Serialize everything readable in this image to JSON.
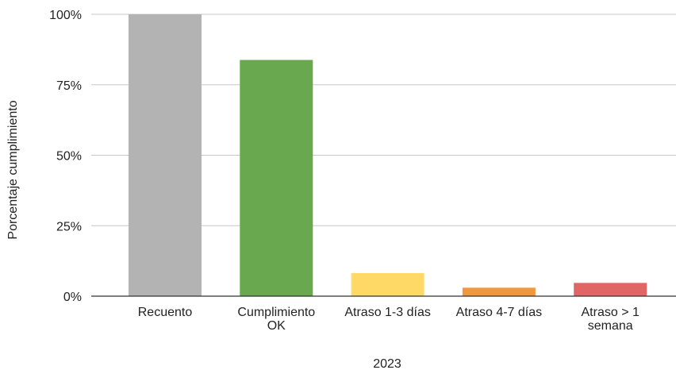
{
  "chart_data": {
    "type": "bar",
    "categories": [
      [
        "Recuento"
      ],
      [
        "Cumplimiento",
        "OK"
      ],
      [
        "Atraso 1-3 días"
      ],
      [
        "Atraso 4-7 días"
      ],
      [
        "Atraso > 1",
        "semana"
      ]
    ],
    "values": [
      100,
      83.8,
      8.2,
      3.0,
      4.7
    ],
    "colors": [
      "#b3b3b3",
      "#6aa84f",
      "#ffd966",
      "#f0983e",
      "#e06666"
    ],
    "xlabel": "2023",
    "ylabel": "Porcentaje cumplimiento",
    "ylim": [
      0,
      100
    ],
    "yticks": [
      0,
      25,
      50,
      75,
      100
    ],
    "ytick_labels": [
      "0%",
      "25%",
      "50%",
      "75%",
      "100%"
    ],
    "grid": true
  }
}
